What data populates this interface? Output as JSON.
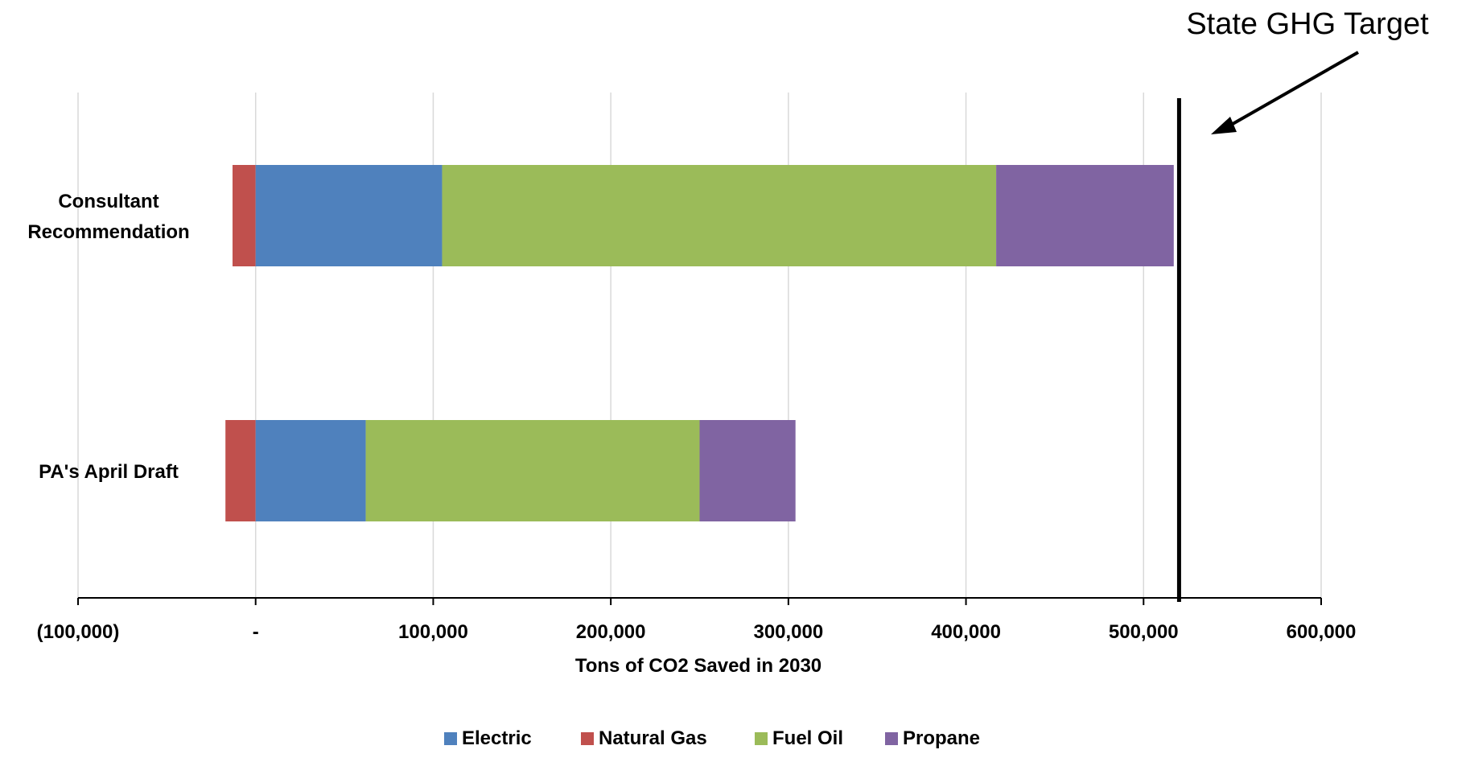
{
  "chart_data": {
    "type": "bar",
    "orientation": "horizontal",
    "stacked": true,
    "categories": [
      "Consultant\nRecommendation",
      "PA's April Draft"
    ],
    "series": [
      {
        "name": "Electric",
        "color": "#4f81bd",
        "values": [
          105000,
          62000
        ]
      },
      {
        "name": "Natural Gas",
        "color": "#c0504d",
        "values": [
          -13000,
          -17000
        ]
      },
      {
        "name": "Fuel Oil",
        "color": "#9bbb59",
        "values": [
          312000,
          188000
        ]
      },
      {
        "name": "Propane",
        "color": "#8064a2",
        "values": [
          100000,
          54000
        ]
      }
    ],
    "stack_order": [
      "Electric",
      "Fuel Oil",
      "Propane"
    ],
    "xlabel": "Tons of CO2 Saved in 2030",
    "xlim": [
      -100000,
      600000
    ],
    "x_ticks": [
      -100000,
      0,
      100000,
      200000,
      300000,
      400000,
      500000,
      600000
    ],
    "x_tick_labels": [
      "(100,000)",
      "-",
      "100,000",
      "200,000",
      "300,000",
      "400,000",
      "500,000",
      "600,000"
    ],
    "grid": "vertical",
    "legend_position": "bottom",
    "target": {
      "label": "State GHG Target",
      "value": 520000
    },
    "colors": {
      "grid": "#d9d9d9",
      "axis": "#000000",
      "target_line": "#000000"
    }
  }
}
